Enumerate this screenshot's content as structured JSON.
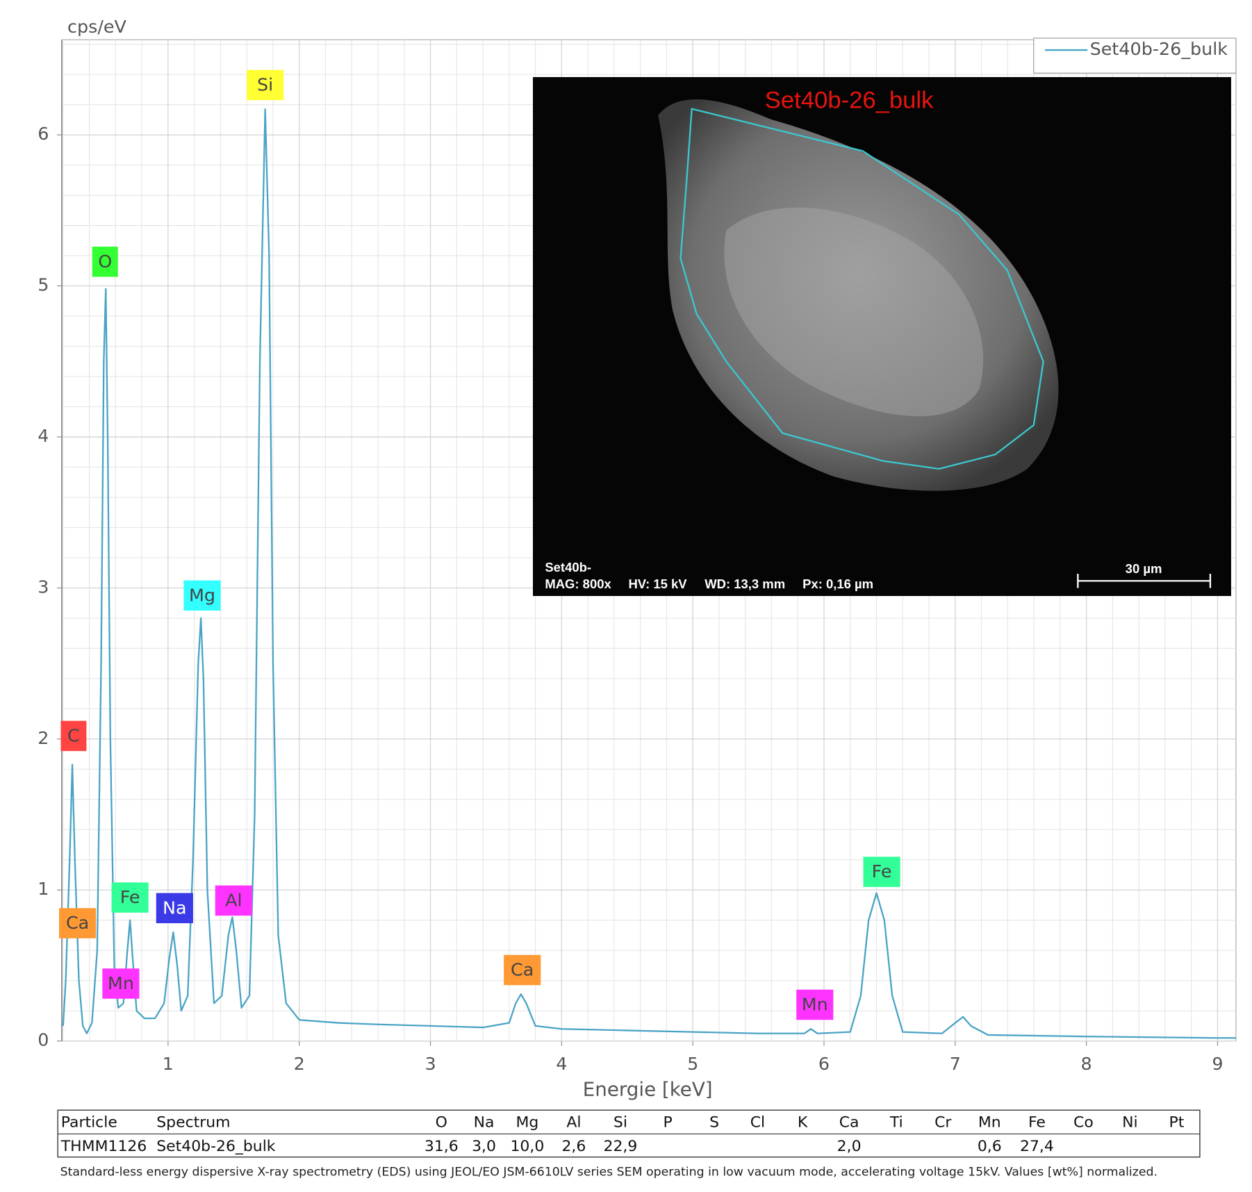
{
  "chart_data": {
    "type": "line",
    "y_label": "cps/eV",
    "x_label": "Energie [keV]",
    "xlim": [
      0.19,
      9.14
    ],
    "ylim": [
      0,
      6.63
    ],
    "xticks": [
      1,
      2,
      3,
      4,
      5,
      6,
      7,
      8,
      9
    ],
    "yticks": [
      0,
      1,
      2,
      3,
      4,
      5,
      6
    ],
    "grid": true,
    "legend": "top-right",
    "x": [
      0.2,
      0.22,
      0.25,
      0.27,
      0.29,
      0.32,
      0.35,
      0.38,
      0.42,
      0.46,
      0.49,
      0.51,
      0.525,
      0.54,
      0.56,
      0.59,
      0.62,
      0.66,
      0.69,
      0.71,
      0.73,
      0.76,
      0.82,
      0.9,
      0.97,
      1.01,
      1.04,
      1.07,
      1.1,
      1.15,
      1.19,
      1.23,
      1.25,
      1.27,
      1.3,
      1.35,
      1.41,
      1.46,
      1.49,
      1.52,
      1.56,
      1.62,
      1.66,
      1.7,
      1.74,
      1.77,
      1.8,
      1.84,
      1.9,
      2.0,
      2.3,
      2.6,
      3.0,
      3.4,
      3.6,
      3.65,
      3.69,
      3.73,
      3.8,
      4.0,
      4.5,
      5.0,
      5.5,
      5.85,
      5.9,
      5.95,
      6.2,
      6.28,
      6.34,
      6.4,
      6.46,
      6.52,
      6.6,
      6.9,
      7.0,
      7.06,
      7.12,
      7.25,
      8.0,
      9.0,
      9.14
    ],
    "series": [
      {
        "name": "Set40b-26_bulk",
        "color": "#4aa3c5",
        "values": [
          0.1,
          0.4,
          1.2,
          1.83,
          1.2,
          0.4,
          0.1,
          0.05,
          0.12,
          0.6,
          2.5,
          4.5,
          4.98,
          4.0,
          2.0,
          0.5,
          0.22,
          0.25,
          0.6,
          0.8,
          0.55,
          0.2,
          0.15,
          0.15,
          0.25,
          0.55,
          0.72,
          0.5,
          0.2,
          0.3,
          1.2,
          2.5,
          2.8,
          2.4,
          1.0,
          0.25,
          0.3,
          0.7,
          0.82,
          0.6,
          0.22,
          0.3,
          1.5,
          4.5,
          6.17,
          5.2,
          2.5,
          0.7,
          0.25,
          0.14,
          0.12,
          0.11,
          0.1,
          0.09,
          0.12,
          0.25,
          0.31,
          0.25,
          0.1,
          0.08,
          0.07,
          0.06,
          0.05,
          0.05,
          0.08,
          0.05,
          0.06,
          0.3,
          0.8,
          0.98,
          0.8,
          0.3,
          0.06,
          0.05,
          0.12,
          0.16,
          0.1,
          0.04,
          0.03,
          0.02,
          0.02
        ]
      }
    ],
    "annotations": [
      {
        "text": "Si",
        "x": 1.74,
        "y": 6.33,
        "color": "#ffff33"
      },
      {
        "text": "O",
        "x": 0.52,
        "y": 5.16,
        "color": "#33ff33"
      },
      {
        "text": "C",
        "x": 0.28,
        "y": 2.02,
        "color": "#ff4444"
      },
      {
        "text": "Ca",
        "x": 0.31,
        "y": 0.78,
        "color": "#ff9933"
      },
      {
        "text": "Fe",
        "x": 0.71,
        "y": 0.95,
        "color": "#33ff99"
      },
      {
        "text": "Mn",
        "x": 0.64,
        "y": 0.38,
        "color": "#ff33ff"
      },
      {
        "text": "Na",
        "x": 1.05,
        "y": 0.88,
        "color": "#3a3ae6"
      },
      {
        "text": "Mg",
        "x": 1.26,
        "y": 2.95,
        "color": "#33ffff"
      },
      {
        "text": "Al",
        "x": 1.5,
        "y": 0.93,
        "color": "#ff33ff"
      },
      {
        "text": "Ca",
        "x": 3.7,
        "y": 0.47,
        "color": "#ff9933"
      },
      {
        "text": "Mn",
        "x": 5.93,
        "y": 0.24,
        "color": "#ff33ff"
      },
      {
        "text": "Fe",
        "x": 6.44,
        "y": 1.12,
        "color": "#33ff99"
      }
    ]
  },
  "inset": {
    "title": "Set40b-26_bulk",
    "sample": "Set40b-",
    "mag": "MAG: 800x",
    "hv": "HV: 15 kV",
    "wd": "WD: 13,3 mm",
    "px": "Px: 0,16 µm",
    "scale": "30 µm"
  },
  "table": {
    "header": [
      "Particle",
      "Spectrum",
      "O",
      "Na",
      "Mg",
      "Al",
      "Si",
      "P",
      "S",
      "Cl",
      "K",
      "Ca",
      "Ti",
      "Cr",
      "Mn",
      "Fe",
      "Co",
      "Ni",
      "Pt"
    ],
    "rows": [
      [
        "THMM1126",
        "Set40b-26_bulk",
        "31,6",
        "3,0",
        "10,0",
        "2,6",
        "22,9",
        null,
        null,
        null,
        null,
        "2,0",
        null,
        null,
        "0,6",
        "27,4",
        null,
        null,
        null
      ]
    ]
  },
  "footnote": "Standard-less energy dispersive X-ray spectrometry (EDS) using JEOL/EO JSM-6610LV series SEM operating in low vacuum mode, accelerating voltage 15kV. Values [wt%] normalized."
}
